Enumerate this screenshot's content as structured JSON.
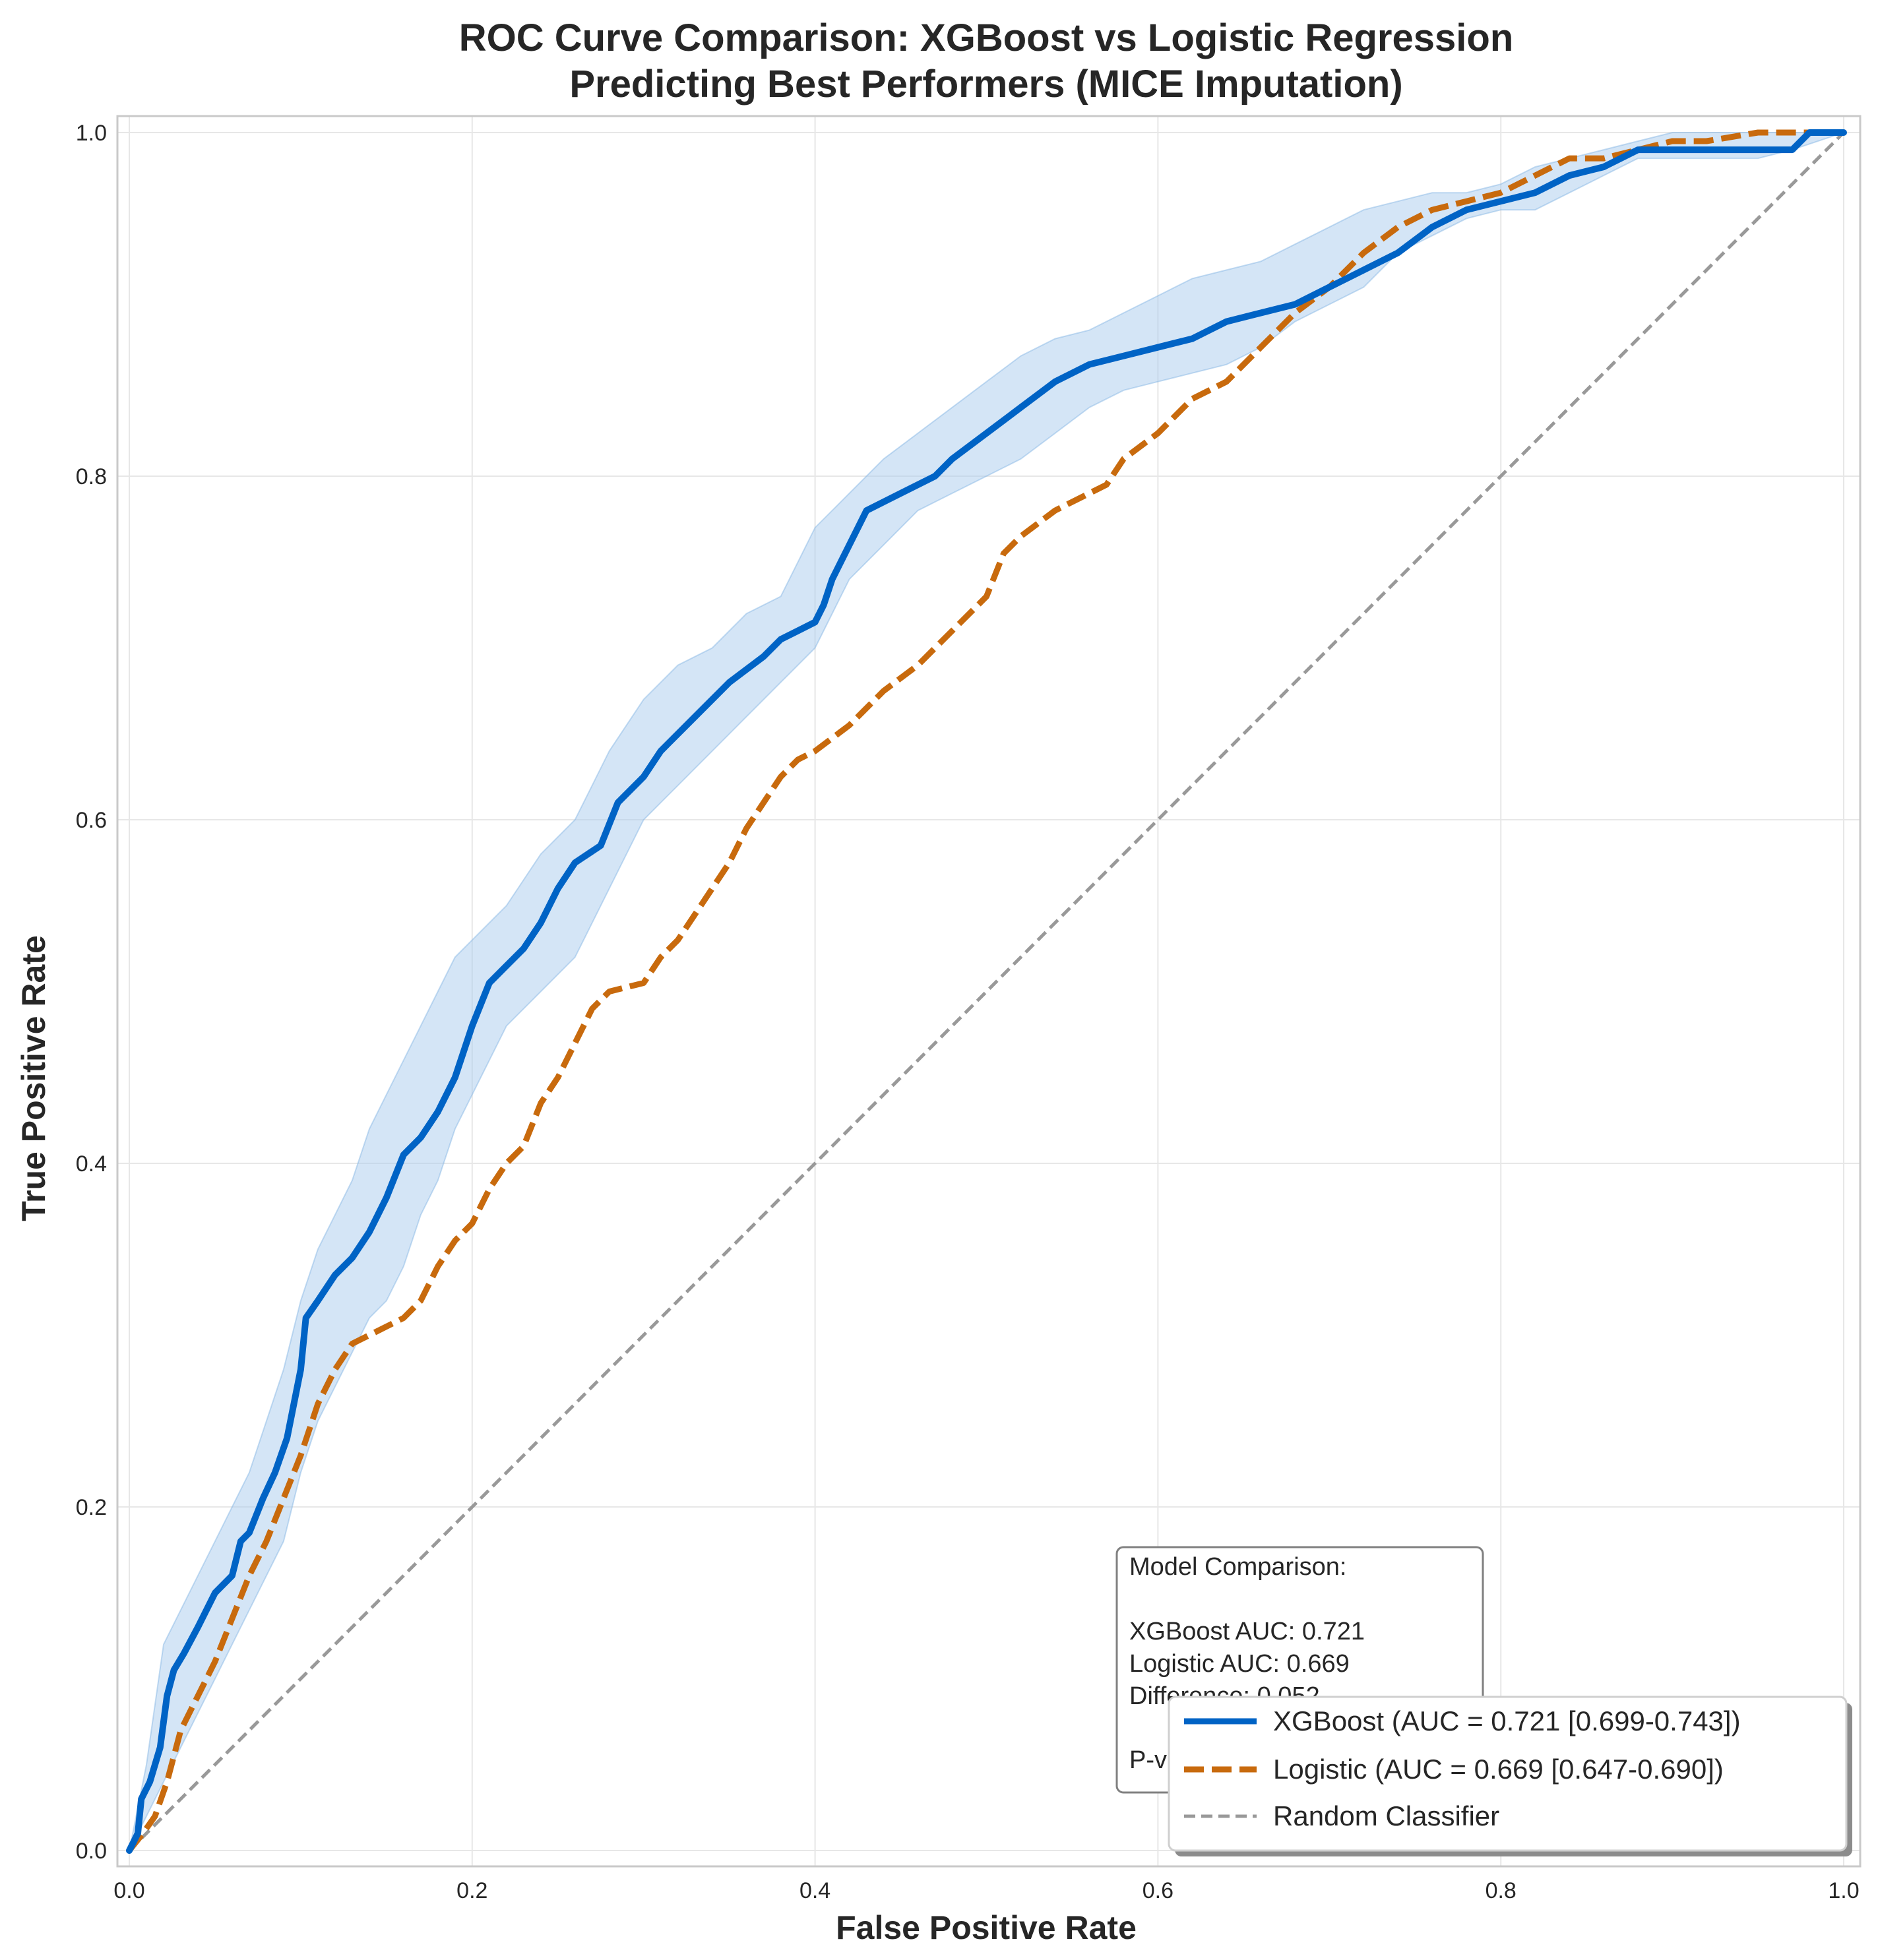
{
  "colors": {
    "xgboost": "#0063c5",
    "logistic": "#c86a0d",
    "ci_fill": "#a9cbee",
    "random": "#999999",
    "grid": "#e7e7e7",
    "frame": "#c9c9c9"
  },
  "chart_data": {
    "type": "line",
    "title_lines": [
      "ROC Curve Comparison: XGBoost vs Logistic Regression",
      "Predicting Best Performers (MICE Imputation)"
    ],
    "xlabel": "False Positive Rate",
    "ylabel": "True Positive Rate",
    "xlim": [
      0,
      1
    ],
    "ylim": [
      0,
      1
    ],
    "xticks": [
      "0.0",
      "0.2",
      "0.4",
      "0.6",
      "0.8",
      "1.0"
    ],
    "yticks": [
      "0.0",
      "0.2",
      "0.4",
      "0.6",
      "0.8",
      "1.0"
    ],
    "grid": true,
    "legend_position": "bottom-right",
    "series": [
      {
        "name": "XGBoost (AUC = 0.721 [0.699-0.743])",
        "style": "solid",
        "x": [
          0.0,
          0.005,
          0.007,
          0.012,
          0.018,
          0.022,
          0.026,
          0.032,
          0.04,
          0.05,
          0.06,
          0.065,
          0.07,
          0.078,
          0.085,
          0.092,
          0.1,
          0.103,
          0.11,
          0.12,
          0.13,
          0.14,
          0.15,
          0.16,
          0.17,
          0.18,
          0.19,
          0.2,
          0.21,
          0.22,
          0.23,
          0.24,
          0.25,
          0.26,
          0.275,
          0.285,
          0.3,
          0.31,
          0.33,
          0.35,
          0.37,
          0.38,
          0.39,
          0.4,
          0.405,
          0.41,
          0.42,
          0.43,
          0.45,
          0.47,
          0.48,
          0.5,
          0.52,
          0.54,
          0.56,
          0.58,
          0.6,
          0.62,
          0.64,
          0.66,
          0.68,
          0.7,
          0.72,
          0.74,
          0.76,
          0.78,
          0.8,
          0.82,
          0.84,
          0.86,
          0.88,
          0.9,
          0.92,
          0.95,
          0.97,
          0.98,
          1.0
        ],
        "y": [
          0.0,
          0.01,
          0.03,
          0.04,
          0.06,
          0.09,
          0.105,
          0.115,
          0.13,
          0.15,
          0.16,
          0.18,
          0.185,
          0.205,
          0.22,
          0.24,
          0.28,
          0.31,
          0.32,
          0.335,
          0.345,
          0.36,
          0.38,
          0.405,
          0.415,
          0.43,
          0.45,
          0.48,
          0.505,
          0.515,
          0.525,
          0.54,
          0.56,
          0.575,
          0.585,
          0.61,
          0.625,
          0.64,
          0.66,
          0.68,
          0.695,
          0.705,
          0.71,
          0.715,
          0.725,
          0.74,
          0.76,
          0.78,
          0.79,
          0.8,
          0.81,
          0.825,
          0.84,
          0.855,
          0.865,
          0.87,
          0.875,
          0.88,
          0.89,
          0.895,
          0.9,
          0.91,
          0.92,
          0.93,
          0.945,
          0.955,
          0.96,
          0.965,
          0.975,
          0.98,
          0.99,
          0.99,
          0.99,
          0.99,
          0.99,
          1.0,
          1.0
        ]
      },
      {
        "name": "Logistic (AUC = 0.669 [0.647-0.690])",
        "style": "dashed",
        "x": [
          0.0,
          0.008,
          0.015,
          0.022,
          0.03,
          0.04,
          0.05,
          0.06,
          0.07,
          0.08,
          0.09,
          0.1,
          0.11,
          0.12,
          0.13,
          0.14,
          0.15,
          0.16,
          0.17,
          0.18,
          0.19,
          0.2,
          0.21,
          0.22,
          0.23,
          0.24,
          0.25,
          0.26,
          0.27,
          0.28,
          0.3,
          0.31,
          0.32,
          0.33,
          0.34,
          0.35,
          0.36,
          0.37,
          0.38,
          0.39,
          0.4,
          0.42,
          0.44,
          0.46,
          0.48,
          0.5,
          0.51,
          0.52,
          0.54,
          0.56,
          0.57,
          0.58,
          0.6,
          0.62,
          0.64,
          0.66,
          0.68,
          0.7,
          0.72,
          0.74,
          0.76,
          0.78,
          0.8,
          0.82,
          0.84,
          0.86,
          0.88,
          0.9,
          0.92,
          0.95,
          0.97,
          1.0
        ],
        "y": [
          0.0,
          0.01,
          0.02,
          0.04,
          0.07,
          0.09,
          0.11,
          0.135,
          0.16,
          0.18,
          0.205,
          0.23,
          0.26,
          0.28,
          0.295,
          0.3,
          0.305,
          0.31,
          0.32,
          0.34,
          0.355,
          0.365,
          0.385,
          0.4,
          0.41,
          0.435,
          0.45,
          0.47,
          0.49,
          0.5,
          0.505,
          0.52,
          0.53,
          0.545,
          0.56,
          0.575,
          0.595,
          0.61,
          0.625,
          0.635,
          0.64,
          0.655,
          0.675,
          0.69,
          0.71,
          0.73,
          0.755,
          0.765,
          0.78,
          0.79,
          0.795,
          0.81,
          0.825,
          0.845,
          0.855,
          0.875,
          0.895,
          0.91,
          0.93,
          0.945,
          0.955,
          0.96,
          0.965,
          0.975,
          0.985,
          0.985,
          0.99,
          0.995,
          0.995,
          1.0,
          1.0,
          1.0
        ]
      },
      {
        "name": "Random Classifier",
        "style": "dashed-thin",
        "x": [
          0,
          1
        ],
        "y": [
          0,
          1
        ]
      }
    ],
    "confidence_band": {
      "x": [
        0.0,
        0.01,
        0.02,
        0.03,
        0.04,
        0.05,
        0.06,
        0.07,
        0.08,
        0.09,
        0.1,
        0.11,
        0.12,
        0.13,
        0.14,
        0.15,
        0.16,
        0.17,
        0.18,
        0.19,
        0.2,
        0.22,
        0.24,
        0.26,
        0.27,
        0.28,
        0.3,
        0.32,
        0.34,
        0.36,
        0.38,
        0.39,
        0.4,
        0.41,
        0.42,
        0.44,
        0.46,
        0.48,
        0.5,
        0.52,
        0.54,
        0.56,
        0.58,
        0.6,
        0.62,
        0.64,
        0.66,
        0.68,
        0.7,
        0.72,
        0.74,
        0.76,
        0.78,
        0.8,
        0.82,
        0.84,
        0.86,
        0.88,
        0.9,
        0.92,
        0.95,
        0.97,
        1.0
      ],
      "lower": [
        0.0,
        0.02,
        0.04,
        0.06,
        0.08,
        0.1,
        0.12,
        0.14,
        0.16,
        0.18,
        0.22,
        0.25,
        0.27,
        0.29,
        0.31,
        0.32,
        0.34,
        0.37,
        0.39,
        0.42,
        0.44,
        0.48,
        0.5,
        0.52,
        0.54,
        0.56,
        0.6,
        0.62,
        0.64,
        0.66,
        0.68,
        0.69,
        0.7,
        0.72,
        0.74,
        0.76,
        0.78,
        0.79,
        0.8,
        0.81,
        0.825,
        0.84,
        0.85,
        0.855,
        0.86,
        0.865,
        0.875,
        0.89,
        0.9,
        0.91,
        0.93,
        0.94,
        0.95,
        0.955,
        0.955,
        0.965,
        0.975,
        0.985,
        0.985,
        0.985,
        0.985,
        0.99,
        1.0
      ],
      "upper": [
        0.0,
        0.05,
        0.12,
        0.14,
        0.16,
        0.18,
        0.2,
        0.22,
        0.25,
        0.28,
        0.32,
        0.35,
        0.37,
        0.39,
        0.42,
        0.44,
        0.46,
        0.48,
        0.5,
        0.52,
        0.53,
        0.55,
        0.58,
        0.6,
        0.62,
        0.64,
        0.67,
        0.69,
        0.7,
        0.72,
        0.73,
        0.75,
        0.77,
        0.78,
        0.79,
        0.81,
        0.825,
        0.84,
        0.855,
        0.87,
        0.88,
        0.885,
        0.895,
        0.905,
        0.915,
        0.92,
        0.925,
        0.935,
        0.945,
        0.955,
        0.96,
        0.965,
        0.965,
        0.97,
        0.98,
        0.985,
        0.99,
        0.995,
        1.0,
        1.0,
        1.0,
        1.0,
        1.0
      ]
    },
    "stats_box": {
      "lines": [
        "Model Comparison:",
        "",
        "XGBoost AUC: 0.721",
        "Logistic AUC: 0.669",
        "Difference: 0.052",
        "",
        "P-value: 0.001"
      ]
    },
    "legend": [
      "XGBoost (AUC = 0.721 [0.699-0.743])",
      "Logistic (AUC = 0.669 [0.647-0.690])",
      "Random Classifier"
    ]
  }
}
